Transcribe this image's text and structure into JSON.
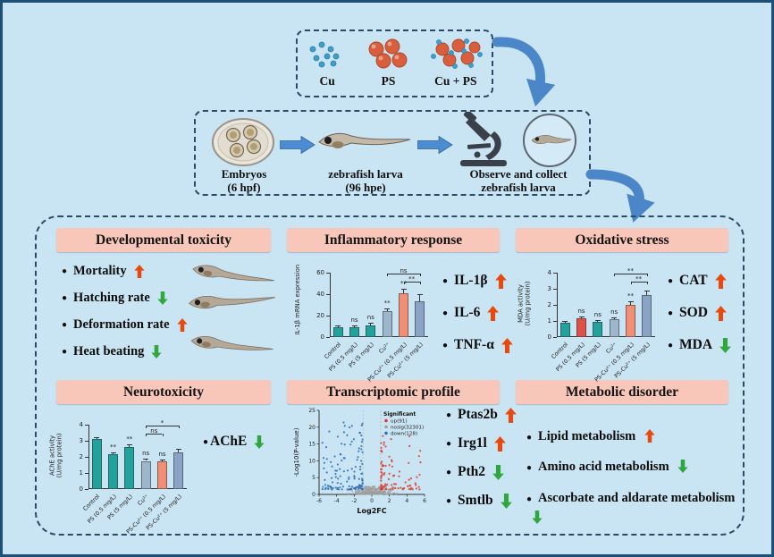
{
  "colors": {
    "up": "#e8490f",
    "down": "#2fa73c",
    "accent_blue": "#4a86c8",
    "header_bg": "#f9c6ba",
    "border_blue": "#1d5079",
    "background": "#c9e4f2"
  },
  "icons": {
    "bullet": "●"
  },
  "exposure": {
    "groups": [
      {
        "label": "Cu"
      },
      {
        "label": "PS"
      },
      {
        "label": "Cu + PS"
      }
    ]
  },
  "workflow": {
    "steps": [
      {
        "line1": "Embryos",
        "line2": "(6 hpf)"
      },
      {
        "line1": "zebrafish larva",
        "line2": "(96 hpe)"
      },
      {
        "line1": "Observe and collect",
        "line2": "zebrafish larva"
      }
    ]
  },
  "panels": {
    "developmental": {
      "title": "Developmental toxicity",
      "bullets": [
        {
          "text": "Mortality",
          "dir": "up"
        },
        {
          "text": "Hatching rate",
          "dir": "down"
        },
        {
          "text": "Deformation rate",
          "dir": "up"
        },
        {
          "text": "Heat beating",
          "dir": "down"
        }
      ]
    },
    "inflammatory": {
      "title": "Inflammatory response",
      "bullets": [
        {
          "text": "IL-1β",
          "dir": "up"
        },
        {
          "text": "IL-6",
          "dir": "up"
        },
        {
          "text": "TNF-α",
          "dir": "up"
        }
      ]
    },
    "oxidative": {
      "title": "Oxidative stress",
      "bullets": [
        {
          "text": "CAT",
          "dir": "up"
        },
        {
          "text": "SOD",
          "dir": "up"
        },
        {
          "text": "MDA",
          "dir": "down"
        }
      ]
    },
    "neurotoxicity": {
      "title": "Neurotoxicity",
      "bullets": [
        {
          "text": "AChE",
          "dir": "down"
        }
      ]
    },
    "transcriptomic": {
      "title": "Transcriptomic profile",
      "bullets": [
        {
          "text": "Ptas2b",
          "dir": "up"
        },
        {
          "text": "Irg1l",
          "dir": "up"
        },
        {
          "text": "Pth2",
          "dir": "down"
        },
        {
          "text": "Smtlb",
          "dir": "down"
        }
      ]
    },
    "metabolic": {
      "title": "Metabolic disorder",
      "bullets": [
        {
          "text": "Lipid metabolism",
          "dir": "up"
        },
        {
          "text": "Amino acid metabolism",
          "dir": "down"
        },
        {
          "text": "Ascorbate and aldarate metabolism",
          "dir": "down"
        }
      ]
    }
  },
  "chart_data": [
    {
      "id": "il1b-mrna-expression",
      "type": "bar",
      "ylabel": "IL-1β mRNA expression",
      "categories": [
        "Control",
        "PS (0.5 mg/L)",
        "PS (5 mg/L)",
        "Cu²⁺",
        "PS-Cu²⁺ (0.5 mg/L)",
        "PS-Cu²⁺ (5 mg/L)"
      ],
      "values": [
        9,
        9,
        11,
        24,
        41,
        33
      ],
      "errors": [
        1.5,
        1.5,
        2,
        3,
        4,
        7
      ],
      "colors": [
        "#22a29a",
        "#22a29a",
        "#22a29a",
        "#9db6cb",
        "#f08e76",
        "#8ba4c6"
      ],
      "sig": [
        "",
        "ns",
        "ns",
        "**",
        "**",
        ""
      ],
      "brackets": [
        {
          "i": 3,
          "j": 5,
          "label": "ns"
        },
        {
          "i": 4,
          "j": 5,
          "label": "**"
        }
      ],
      "ylim": [
        0,
        60
      ],
      "yticks": [
        0,
        20,
        40,
        60
      ]
    },
    {
      "id": "mda-activity",
      "type": "bar",
      "ylabel": "MDA activity\n(U/mg protein)",
      "categories": [
        "Control",
        "PS (0.5 mg/L)",
        "PS (5 mg/L)",
        "Cu²⁺",
        "PS-Cu²⁺ (0.5 mg/L)",
        "PS-Cu²⁺ (5 mg/L)"
      ],
      "values": [
        0.9,
        1.15,
        0.95,
        1.1,
        2.0,
        2.6
      ],
      "errors": [
        0.1,
        0.12,
        0.1,
        0.12,
        0.2,
        0.3
      ],
      "colors": [
        "#22a29a",
        "#de5147",
        "#22a29a",
        "#9db6cb",
        "#f08e76",
        "#8ba4c6"
      ],
      "sig": [
        "",
        "ns",
        "ns",
        "ns",
        "**",
        ""
      ],
      "brackets": [
        {
          "i": 3,
          "j": 5,
          "label": "**"
        },
        {
          "i": 4,
          "j": 5,
          "label": "**"
        }
      ],
      "ylim": [
        0,
        4
      ],
      "yticks": [
        0,
        1,
        2,
        3,
        4
      ]
    },
    {
      "id": "ache-activity",
      "type": "bar",
      "ylabel": "AChE activity\n(U/mg protein)",
      "categories": [
        "Control",
        "PS (0.5 mg/L)",
        "PS (5 mg/L)",
        "Cu²⁺",
        "PS-Cu²⁺ (0.5 mg/L)",
        "PS-Cu²⁺ (5 mg/L)"
      ],
      "values": [
        3.1,
        2.15,
        2.6,
        1.75,
        1.7,
        2.3
      ],
      "errors": [
        0.15,
        0.15,
        0.2,
        0.15,
        0.15,
        0.2
      ],
      "colors": [
        "#22a29a",
        "#22a29a",
        "#22a29a",
        "#9db6cb",
        "#f08e76",
        "#8ba4c6"
      ],
      "sig": [
        "",
        "**",
        "**",
        "ns",
        "ns",
        ""
      ],
      "brackets": [
        {
          "i": 3,
          "j": 5,
          "label": "*"
        },
        {
          "i": 3,
          "j": 4,
          "label": "ns"
        }
      ],
      "ylim": [
        0,
        4
      ],
      "yticks": [
        0,
        1,
        2,
        3,
        4
      ]
    },
    {
      "id": "volcano",
      "type": "scatter",
      "xlabel": "Log2FC",
      "ylabel": "-Log10(P-value)",
      "xlim": [
        -6,
        6
      ],
      "ylim": [
        0,
        25
      ],
      "xticks": [
        -6,
        -4,
        -2,
        0,
        2,
        4,
        6
      ],
      "yticks": [
        0,
        5,
        10,
        15,
        20,
        25
      ],
      "thresholds": {
        "log2fc": [
          -1,
          1
        ]
      },
      "legend": {
        "title": "Significant",
        "items": [
          {
            "label": "up(91)",
            "color": "#e0382c",
            "count": 91
          },
          {
            "label": "nosig(32301)",
            "color": "#9e9e9e",
            "count": 32301
          },
          {
            "label": "down(128)",
            "color": "#2f6db5",
            "count": 128
          }
        ]
      }
    }
  ]
}
